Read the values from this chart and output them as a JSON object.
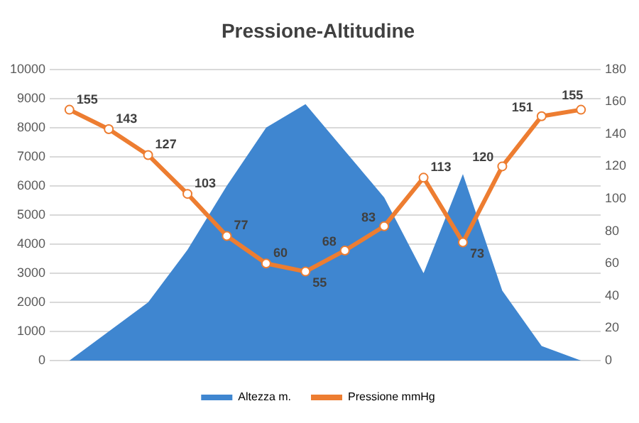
{
  "chart_data": {
    "type": "area",
    "title": "Pressione-Altitudine",
    "categories": [
      null,
      null,
      null,
      null,
      null,
      null,
      null,
      null,
      null,
      null,
      null,
      null,
      null,
      null
    ],
    "series": [
      {
        "name": "Altezza m.",
        "color": "#3f86d0",
        "values": [
          0,
          1000,
          2000,
          3800,
          6000,
          8000,
          8800,
          7200,
          5600,
          3000,
          6400,
          2400,
          500,
          0
        ]
      },
      {
        "name": "Pressione mmHg",
        "type": "line",
        "axis": "y2",
        "color": "#ed7d31",
        "marker": "circle",
        "values": [
          155,
          143,
          127,
          103,
          77,
          60,
          55,
          68,
          83,
          113,
          73,
          120,
          151,
          155
        ],
        "value_labels": [
          "155",
          "143",
          "127",
          "103",
          "77",
          "60",
          "55",
          "68",
          "83",
          "113",
          "73",
          "120",
          "151",
          "155"
        ]
      }
    ],
    "ylim": [
      0,
      10000
    ],
    "yticks": [
      0,
      1000,
      2000,
      3000,
      4000,
      5000,
      6000,
      7000,
      8000,
      9000,
      10000
    ],
    "y2lim": [
      0,
      180
    ],
    "y2ticks": [
      0,
      20,
      40,
      60,
      80,
      100,
      120,
      140,
      160,
      180
    ],
    "grid": "y",
    "legend": "bottom"
  }
}
